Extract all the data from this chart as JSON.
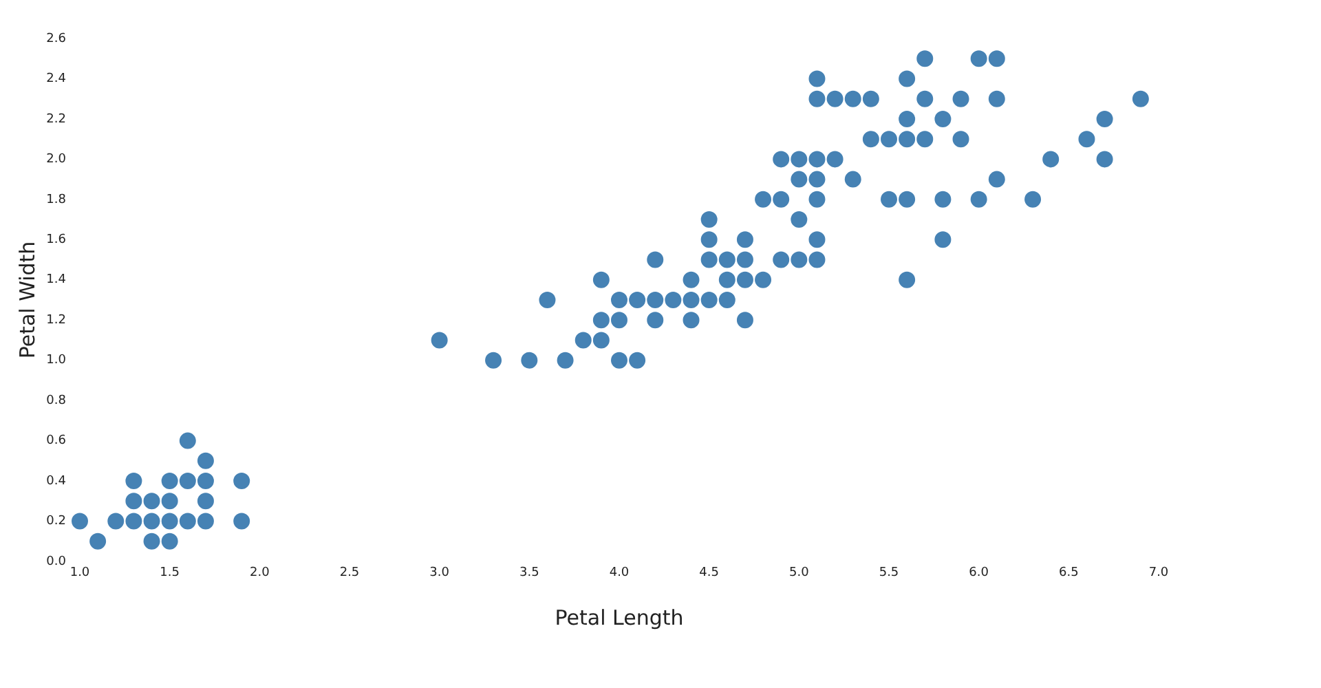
{
  "chart_data": {
    "type": "scatter",
    "xlabel": "Petal Length",
    "ylabel": "Petal Width",
    "grid": false,
    "legend": false,
    "marker": "circle",
    "xlim": [
      1,
      7
    ],
    "ylim": [
      0,
      2.6
    ],
    "xticks": [
      {
        "value": 1,
        "label": "1.0"
      },
      1.5,
      {
        "value": 2,
        "label": "2.0"
      },
      2.5,
      {
        "value": 3,
        "label": "3.0"
      },
      3.5,
      {
        "value": 4,
        "label": "4.0"
      },
      4.5,
      {
        "value": 5,
        "label": "5.0"
      },
      5.5,
      {
        "value": 6,
        "label": "6.0"
      },
      6.5,
      {
        "value": 7,
        "label": "7.0"
      }
    ],
    "yticks": [
      {
        "value": 0,
        "label": "0.0"
      },
      0.2,
      0.4,
      0.6,
      0.8,
      {
        "value": 1,
        "label": "1.0"
      },
      1.2,
      1.4,
      1.6,
      1.8,
      {
        "value": 2,
        "label": "2.0"
      },
      2.2,
      2.4,
      2.6
    ],
    "series": [
      {
        "color": "#4682b4",
        "x": [
          1.0,
          1.1,
          1.2,
          1.3,
          1.3,
          1.3,
          1.4,
          1.4,
          1.4,
          1.5,
          1.5,
          1.5,
          1.5,
          1.6,
          1.6,
          1.6,
          1.7,
          1.7,
          1.7,
          1.7,
          1.9,
          1.9,
          3.0,
          3.3,
          3.5,
          3.6,
          3.7,
          3.8,
          3.9,
          3.9,
          3.9,
          4.0,
          4.0,
          4.0,
          4.1,
          4.1,
          4.2,
          4.2,
          4.2,
          4.3,
          4.4,
          4.4,
          4.4,
          4.5,
          4.5,
          4.5,
          4.5,
          4.6,
          4.6,
          4.6,
          4.7,
          4.7,
          4.7,
          4.7,
          4.8,
          4.8,
          4.9,
          4.9,
          4.9,
          5.0,
          5.0,
          5.0,
          5.0,
          5.1,
          5.1,
          5.1,
          5.1,
          5.1,
          5.1,
          5.1,
          5.2,
          5.2,
          5.3,
          5.3,
          5.4,
          5.4,
          5.5,
          5.5,
          5.6,
          5.6,
          5.6,
          5.6,
          5.6,
          5.7,
          5.7,
          5.7,
          5.8,
          5.8,
          5.8,
          5.9,
          5.9,
          6.0,
          6.0,
          6.1,
          6.1,
          6.1,
          6.3,
          6.4,
          6.6,
          6.7,
          6.7,
          6.9
        ],
        "values": [
          0.2,
          0.1,
          0.2,
          0.2,
          0.3,
          0.4,
          0.1,
          0.2,
          0.3,
          0.1,
          0.2,
          0.3,
          0.4,
          0.2,
          0.4,
          0.6,
          0.2,
          0.3,
          0.4,
          0.5,
          0.2,
          0.4,
          1.1,
          1.0,
          1.0,
          1.3,
          1.0,
          1.1,
          1.1,
          1.2,
          1.4,
          1.0,
          1.2,
          1.3,
          1.0,
          1.3,
          1.2,
          1.3,
          1.5,
          1.3,
          1.2,
          1.3,
          1.4,
          1.3,
          1.5,
          1.6,
          1.7,
          1.3,
          1.4,
          1.5,
          1.2,
          1.4,
          1.5,
          1.6,
          1.4,
          1.8,
          1.5,
          1.8,
          2.0,
          1.5,
          1.7,
          1.9,
          2.0,
          1.5,
          1.6,
          1.8,
          1.9,
          2.0,
          2.3,
          2.4,
          2.0,
          2.3,
          1.9,
          2.3,
          2.1,
          2.3,
          1.8,
          2.1,
          1.4,
          1.8,
          2.1,
          2.2,
          2.4,
          2.1,
          2.3,
          2.5,
          1.6,
          1.8,
          2.2,
          2.1,
          2.3,
          1.8,
          2.5,
          1.9,
          2.3,
          2.5,
          1.8,
          2.0,
          2.1,
          2.0,
          2.2,
          2.3
        ]
      }
    ]
  }
}
